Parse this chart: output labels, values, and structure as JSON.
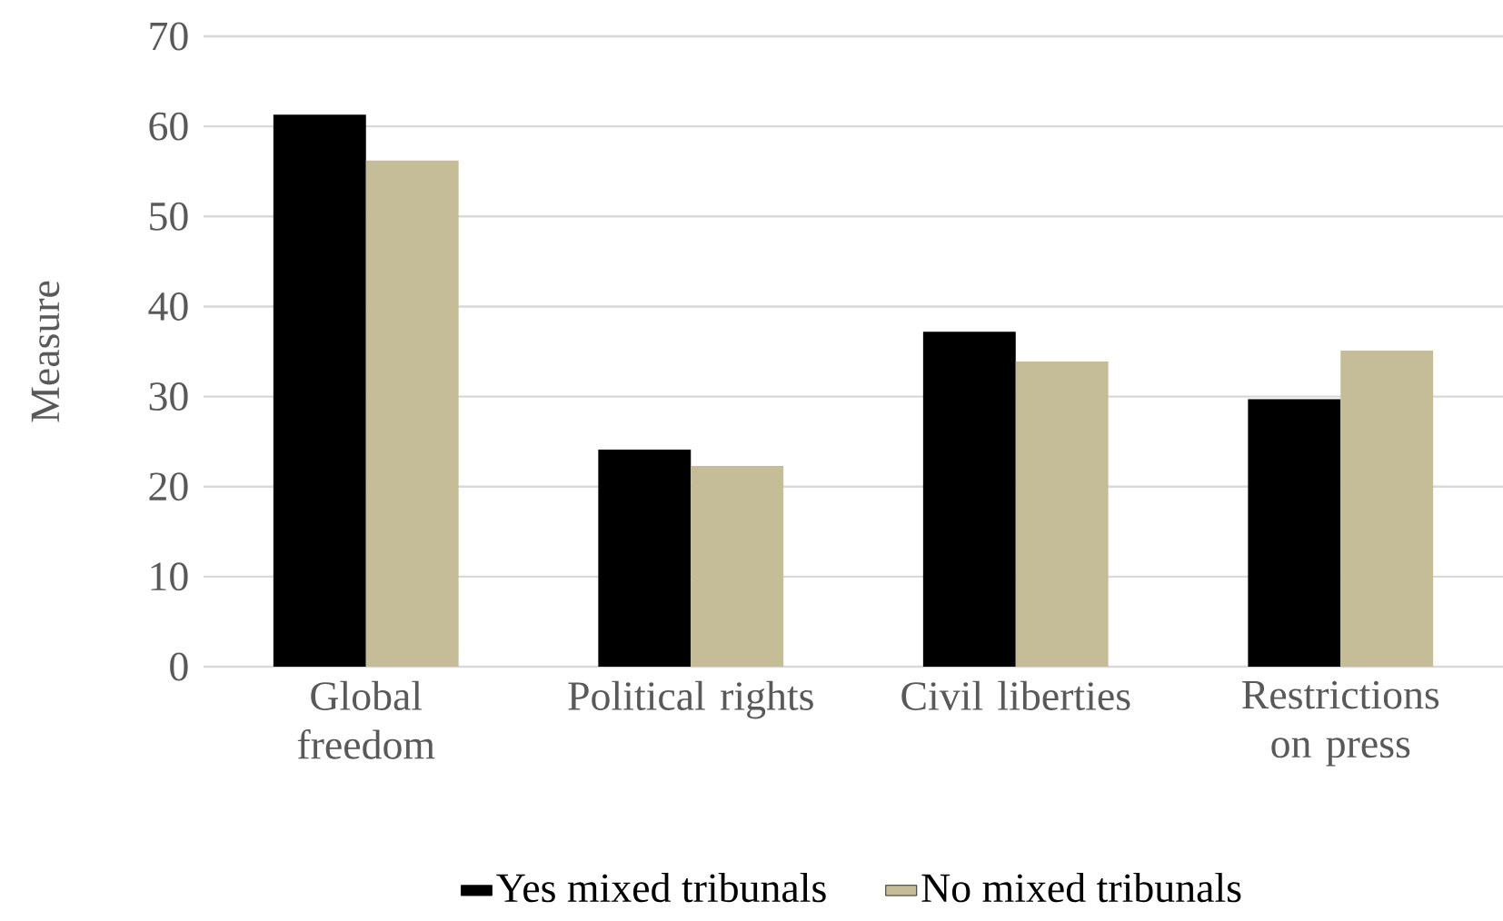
{
  "chart_data": {
    "type": "bar",
    "ylabel": "Measure",
    "categories": [
      "Global freedom",
      "Political rights",
      "Civil liberties",
      "Restrictions on press"
    ],
    "series": [
      {
        "name": "Yes mixed tribunals",
        "color": "#000000",
        "values": [
          61.3,
          24.1,
          37.2,
          29.7
        ]
      },
      {
        "name": "No mixed tribunals",
        "color": "#c4bd97",
        "values": [
          56.2,
          22.3,
          33.9,
          35.1
        ]
      }
    ],
    "ylim": [
      0,
      70
    ],
    "yticks": [
      0,
      10,
      20,
      30,
      40,
      50,
      60,
      70
    ],
    "grid": "y",
    "legend": "bottom"
  }
}
